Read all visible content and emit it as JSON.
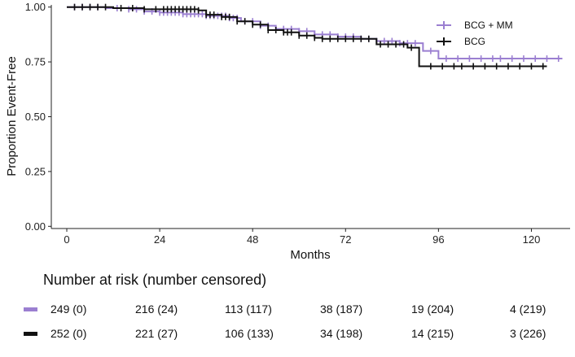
{
  "chart_data": {
    "type": "line",
    "subtype": "kaplan-meier step",
    "xlabel": "Months",
    "ylabel": "Proportion Event-Free",
    "xlim": [
      -4,
      130
    ],
    "ylim": [
      -0.01,
      1.01
    ],
    "xticks": [
      0,
      24,
      48,
      72,
      96,
      120
    ],
    "xtick_labels": [
      "0",
      "24",
      "48",
      "72",
      "96",
      "120"
    ],
    "yticks": [
      0,
      0.25,
      0.5,
      0.75,
      1.0
    ],
    "ytick_labels": [
      "0.00",
      "0.25",
      "0.50",
      "0.75",
      "1.00"
    ],
    "grid": false,
    "legend_position": "top-right",
    "series": [
      {
        "name": "BCG + MM",
        "color": "#9b7fd1",
        "steps": [
          [
            0,
            1.0
          ],
          [
            10,
            0.995
          ],
          [
            16,
            0.99
          ],
          [
            20,
            0.98
          ],
          [
            24,
            0.975
          ],
          [
            30,
            0.968
          ],
          [
            36,
            0.96
          ],
          [
            42,
            0.95
          ],
          [
            45,
            0.935
          ],
          [
            50,
            0.915
          ],
          [
            54,
            0.9
          ],
          [
            60,
            0.89
          ],
          [
            64,
            0.875
          ],
          [
            70,
            0.865
          ],
          [
            76,
            0.855
          ],
          [
            80,
            0.845
          ],
          [
            86,
            0.835
          ],
          [
            92,
            0.8
          ],
          [
            96,
            0.765
          ],
          [
            128,
            0.765
          ]
        ],
        "censor_times": [
          2,
          4,
          6,
          8,
          13,
          16,
          18,
          20,
          22,
          24,
          25,
          26,
          27,
          28,
          29,
          30,
          31,
          32,
          33,
          34,
          35,
          36,
          37,
          38,
          39,
          40,
          41,
          42,
          43,
          44,
          46,
          48,
          50,
          52,
          54,
          56,
          58,
          60,
          62,
          64,
          66,
          68,
          70,
          72,
          74,
          76,
          78,
          80,
          82,
          84,
          86,
          88,
          90,
          94,
          98,
          101,
          104,
          107,
          110,
          112,
          115,
          118,
          121,
          124,
          127
        ]
      },
      {
        "name": "BCG",
        "color": "#111111",
        "steps": [
          [
            0,
            1.0
          ],
          [
            12,
            0.995
          ],
          [
            20,
            0.99
          ],
          [
            34,
            0.985
          ],
          [
            36,
            0.965
          ],
          [
            40,
            0.955
          ],
          [
            44,
            0.935
          ],
          [
            48,
            0.92
          ],
          [
            52,
            0.895
          ],
          [
            56,
            0.885
          ],
          [
            60,
            0.87
          ],
          [
            64,
            0.86
          ],
          [
            66,
            0.855
          ],
          [
            80,
            0.83
          ],
          [
            88,
            0.815
          ],
          [
            91,
            0.73
          ],
          [
            124,
            0.73
          ]
        ],
        "censor_times": [
          2,
          4,
          6,
          8,
          10,
          14,
          17,
          20,
          23,
          25,
          26,
          27,
          28,
          29,
          30,
          31,
          32,
          33,
          34,
          36,
          37,
          38,
          40,
          41,
          42,
          44,
          46,
          48,
          50,
          52,
          54,
          56,
          57,
          58,
          60,
          62,
          64,
          66,
          68,
          70,
          72,
          74,
          76,
          78,
          81,
          83,
          85,
          87,
          89,
          94,
          97,
          100,
          102,
          105,
          108,
          111,
          114,
          117,
          120,
          123
        ]
      }
    ]
  },
  "risk_table": {
    "title": "Number at risk (number censored)",
    "rows": [
      {
        "name": "BCG + MM",
        "color": "#9b7fd1",
        "values": [
          "249 (0)",
          "216 (24)",
          "113 (117)",
          "38 (187)",
          "19 (204)",
          "4 (219)"
        ]
      },
      {
        "name": "BCG",
        "color": "#111111",
        "values": [
          "252 (0)",
          "221 (27)",
          "106 (133)",
          "34 (198)",
          "14 (215)",
          "3 (226)"
        ]
      }
    ]
  }
}
